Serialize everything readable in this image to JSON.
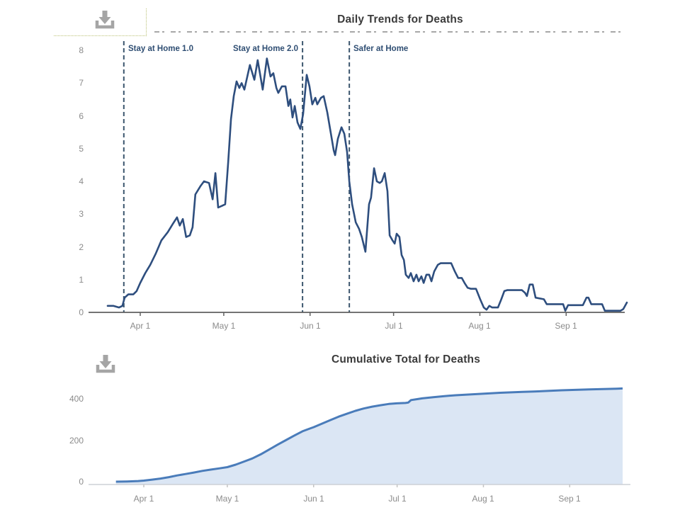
{
  "icons": {
    "top_chart_button": "download-icon",
    "bottom_chart_button": "download-icon"
  },
  "colors": {
    "daily_line": "#2e4e7e",
    "reference_line": "#3c566e",
    "reference_label": "#2f4e73",
    "cumulative_line": "#4a7cba",
    "cumulative_fill": "#dbe6f4",
    "axis_text": "#8b8b8b",
    "title_text": "#3b3b3b",
    "download_icon": "#a5a5a5"
  },
  "chart_data": [
    {
      "type": "line",
      "title": "Daily Trends for Deaths",
      "xlabel": "",
      "ylabel": "",
      "x_unit": "days_from_Apr_1",
      "ylim": [
        0,
        8
      ],
      "grid": false,
      "legend": "none",
      "y_ticks": [
        0,
        1,
        2,
        3,
        4,
        5,
        6,
        7,
        8
      ],
      "x_ticks": [
        {
          "label": "Apr 1",
          "day": 0
        },
        {
          "label": "May 1",
          "day": 30
        },
        {
          "label": "Jun 1",
          "day": 61
        },
        {
          "label": "Jul 1",
          "day": 91
        },
        {
          "label": "Aug 1",
          "day": 122
        },
        {
          "label": "Sep 1",
          "day": 153
        }
      ],
      "reference_lines": [
        {
          "label": "Stay at Home 1.0",
          "day": -5.9,
          "label_side": "right"
        },
        {
          "label": "Stay at Home 2.0",
          "day": 58.3,
          "label_side": "left"
        },
        {
          "label": "Safer at Home",
          "day": 75.1,
          "label_side": "right"
        }
      ],
      "points": [
        [
          -11.7,
          0.2
        ],
        [
          -9.7,
          0.2
        ],
        [
          -7.6,
          0.15
        ],
        [
          -6.4,
          0.2
        ],
        [
          -5.6,
          0.45
        ],
        [
          -4.3,
          0.55
        ],
        [
          -2.5,
          0.55
        ],
        [
          -1.3,
          0.65
        ],
        [
          0,
          0.9
        ],
        [
          1.8,
          1.2
        ],
        [
          3.6,
          1.45
        ],
        [
          5.6,
          1.8
        ],
        [
          7.6,
          2.2
        ],
        [
          9.9,
          2.45
        ],
        [
          11.7,
          2.7
        ],
        [
          13.2,
          2.9
        ],
        [
          14.2,
          2.65
        ],
        [
          15.3,
          2.85
        ],
        [
          16.5,
          2.3
        ],
        [
          17.8,
          2.35
        ],
        [
          18.8,
          2.6
        ],
        [
          19.8,
          3.6
        ],
        [
          21.6,
          3.85
        ],
        [
          22.9,
          4.0
        ],
        [
          24.7,
          3.95
        ],
        [
          26.0,
          3.45
        ],
        [
          27.0,
          4.25
        ],
        [
          28.0,
          3.2
        ],
        [
          29.3,
          3.25
        ],
        [
          30.5,
          3.3
        ],
        [
          31.6,
          4.6
        ],
        [
          32.6,
          5.9
        ],
        [
          33.6,
          6.6
        ],
        [
          34.6,
          7.05
        ],
        [
          35.6,
          6.85
        ],
        [
          36.4,
          7.0
        ],
        [
          37.4,
          6.8
        ],
        [
          39.4,
          7.55
        ],
        [
          41.0,
          7.1
        ],
        [
          42.2,
          7.7
        ],
        [
          44.0,
          6.8
        ],
        [
          45.5,
          7.75
        ],
        [
          46.8,
          7.2
        ],
        [
          47.8,
          7.3
        ],
        [
          48.9,
          6.85
        ],
        [
          49.6,
          6.7
        ],
        [
          50.9,
          6.9
        ],
        [
          52.2,
          6.9
        ],
        [
          53.2,
          6.3
        ],
        [
          53.9,
          6.5
        ],
        [
          54.7,
          5.95
        ],
        [
          55.5,
          6.3
        ],
        [
          56.5,
          5.8
        ],
        [
          57.5,
          5.6
        ],
        [
          58.5,
          6.05
        ],
        [
          59.8,
          7.25
        ],
        [
          60.8,
          6.9
        ],
        [
          61.8,
          6.35
        ],
        [
          62.9,
          6.55
        ],
        [
          63.6,
          6.35
        ],
        [
          64.9,
          6.55
        ],
        [
          65.9,
          6.6
        ],
        [
          67.2,
          6.1
        ],
        [
          68.4,
          5.5
        ],
        [
          69.5,
          4.95
        ],
        [
          70.0,
          4.8
        ],
        [
          71.0,
          5.3
        ],
        [
          72.3,
          5.65
        ],
        [
          73.3,
          5.45
        ],
        [
          74.3,
          4.9
        ],
        [
          75.1,
          4.0
        ],
        [
          76.1,
          3.3
        ],
        [
          77.4,
          2.75
        ],
        [
          78.6,
          2.55
        ],
        [
          79.6,
          2.3
        ],
        [
          80.9,
          1.85
        ],
        [
          82.2,
          3.3
        ],
        [
          82.9,
          3.5
        ],
        [
          84.0,
          4.4
        ],
        [
          85.0,
          4.0
        ],
        [
          86.0,
          3.95
        ],
        [
          86.8,
          4.0
        ],
        [
          87.8,
          4.25
        ],
        [
          88.8,
          3.7
        ],
        [
          89.6,
          2.35
        ],
        [
          90.6,
          2.2
        ],
        [
          91.4,
          2.1
        ],
        [
          92.1,
          2.4
        ],
        [
          93.1,
          2.3
        ],
        [
          93.9,
          1.75
        ],
        [
          94.7,
          1.6
        ],
        [
          95.4,
          1.15
        ],
        [
          96.4,
          1.05
        ],
        [
          97.2,
          1.2
        ],
        [
          98.2,
          0.95
        ],
        [
          99.2,
          1.15
        ],
        [
          100.0,
          0.95
        ],
        [
          101.0,
          1.1
        ],
        [
          101.8,
          0.9
        ],
        [
          102.8,
          1.15
        ],
        [
          103.8,
          1.15
        ],
        [
          104.6,
          0.95
        ],
        [
          105.6,
          1.25
        ],
        [
          106.9,
          1.45
        ],
        [
          107.9,
          1.5
        ],
        [
          111.7,
          1.5
        ],
        [
          113.0,
          1.25
        ],
        [
          114.2,
          1.05
        ],
        [
          115.5,
          1.05
        ],
        [
          116.5,
          0.9
        ],
        [
          117.6,
          0.75
        ],
        [
          118.8,
          0.72
        ],
        [
          120.6,
          0.72
        ],
        [
          122.1,
          0.4
        ],
        [
          123.4,
          0.15
        ],
        [
          124.4,
          0.08
        ],
        [
          125.4,
          0.2
        ],
        [
          126.4,
          0.15
        ],
        [
          128.5,
          0.15
        ],
        [
          129.7,
          0.4
        ],
        [
          130.8,
          0.65
        ],
        [
          131.8,
          0.68
        ],
        [
          137.1,
          0.68
        ],
        [
          138.2,
          0.6
        ],
        [
          138.9,
          0.5
        ],
        [
          139.9,
          0.85
        ],
        [
          141.0,
          0.85
        ],
        [
          142.0,
          0.45
        ],
        [
          145.0,
          0.4
        ],
        [
          146.0,
          0.25
        ],
        [
          151.9,
          0.25
        ],
        [
          152.7,
          0.05
        ],
        [
          153.7,
          0.22
        ],
        [
          159.0,
          0.22
        ],
        [
          160.3,
          0.45
        ],
        [
          161.0,
          0.45
        ],
        [
          162.0,
          0.25
        ],
        [
          165.9,
          0.25
        ],
        [
          166.9,
          0.05
        ],
        [
          172.5,
          0.05
        ],
        [
          173.5,
          0.1
        ],
        [
          174.8,
          0.3
        ]
      ]
    },
    {
      "type": "area",
      "title": "Cumulative Total for Deaths",
      "xlabel": "",
      "ylabel": "",
      "x_unit": "days_from_Apr_1",
      "ylim": [
        0,
        450
      ],
      "grid": false,
      "legend": "none",
      "y_ticks": [
        0,
        200,
        400
      ],
      "x_ticks": [
        {
          "label": "Apr 1",
          "day": 0
        },
        {
          "label": "May 1",
          "day": 30
        },
        {
          "label": "Jun 1",
          "day": 61
        },
        {
          "label": "Jul 1",
          "day": 91
        },
        {
          "label": "Aug 1",
          "day": 122
        },
        {
          "label": "Sep 1",
          "day": 153
        }
      ],
      "points": [
        [
          -10,
          0
        ],
        [
          -6,
          1
        ],
        [
          -2,
          3
        ],
        [
          0,
          5
        ],
        [
          3,
          10
        ],
        [
          6,
          15
        ],
        [
          9,
          22
        ],
        [
          12,
          30
        ],
        [
          15,
          37
        ],
        [
          18,
          44
        ],
        [
          21,
          52
        ],
        [
          24,
          58
        ],
        [
          27,
          64
        ],
        [
          30,
          70
        ],
        [
          33,
          82
        ],
        [
          36,
          97
        ],
        [
          39,
          112
        ],
        [
          42,
          132
        ],
        [
          45,
          155
        ],
        [
          48,
          178
        ],
        [
          51,
          200
        ],
        [
          54,
          222
        ],
        [
          57,
          243
        ],
        [
          60,
          258
        ],
        [
          61,
          263
        ],
        [
          64,
          280
        ],
        [
          67,
          297
        ],
        [
          70,
          314
        ],
        [
          73,
          328
        ],
        [
          76,
          342
        ],
        [
          79,
          353
        ],
        [
          82,
          362
        ],
        [
          85,
          369
        ],
        [
          88,
          375
        ],
        [
          91,
          378
        ],
        [
          94,
          380
        ],
        [
          95,
          382
        ],
        [
          96,
          394
        ],
        [
          98,
          398
        ],
        [
          100,
          402
        ],
        [
          104,
          408
        ],
        [
          108,
          413
        ],
        [
          112,
          417
        ],
        [
          116,
          420
        ],
        [
          120,
          423
        ],
        [
          124,
          426
        ],
        [
          128,
          429
        ],
        [
          132,
          431
        ],
        [
          136,
          433
        ],
        [
          140,
          435
        ],
        [
          145,
          438
        ],
        [
          150,
          441
        ],
        [
          155,
          443
        ],
        [
          160,
          445
        ],
        [
          165,
          447
        ],
        [
          170,
          449
        ],
        [
          172,
          450
        ]
      ]
    }
  ]
}
